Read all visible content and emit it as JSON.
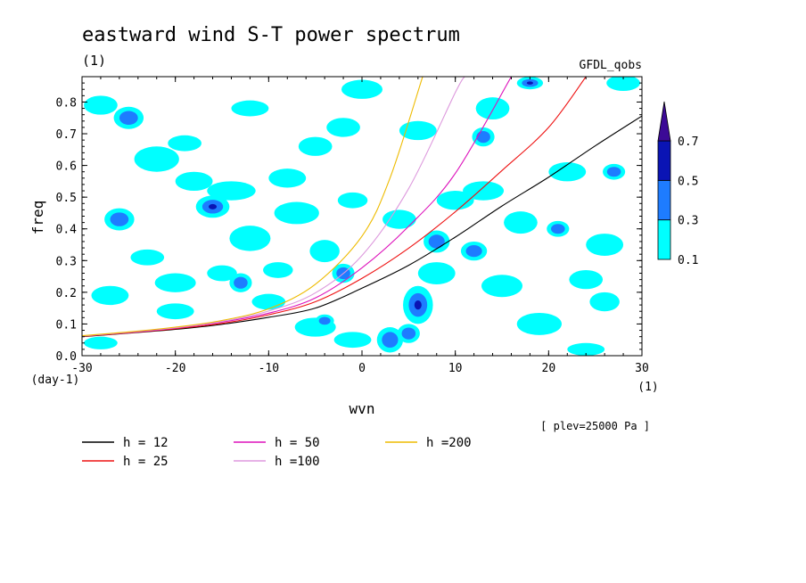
{
  "chart_data": {
    "type": "contour",
    "title": "eastward wind S-T power spectrum",
    "subtitle_left": "(1)",
    "subtitle_right": "GFDL_qobs",
    "xlabel": "wvn",
    "ylabel": "freq",
    "x_unit_label": "(1)",
    "y_unit_label": "(day-1)",
    "annotation": "[ plev=25000 Pa ]",
    "xlim": [
      -30,
      30
    ],
    "ylim": [
      0.0,
      0.88
    ],
    "x_ticks": [
      "-30",
      "-20",
      "-10",
      "0",
      "10",
      "20",
      "30"
    ],
    "y_ticks": [
      "0.0",
      "0.1",
      "0.2",
      "0.3",
      "0.4",
      "0.5",
      "0.6",
      "0.7",
      "0.8"
    ],
    "colorbar": {
      "levels": [
        "0.1",
        "0.3",
        "0.5",
        "0.7"
      ],
      "colors": [
        "#00ffff",
        "#1e7cff",
        "#0a14b4",
        "#3c0a96"
      ]
    },
    "series": [
      {
        "name": "h = 12",
        "color": "#000000",
        "x": [
          -30,
          -25,
          -20,
          -15,
          -10,
          -5,
          0,
          5,
          10,
          15,
          20,
          25,
          30
        ],
        "y": [
          0.06,
          0.071,
          0.083,
          0.099,
          0.121,
          0.15,
          0.213,
          0.285,
          0.374,
          0.472,
          0.563,
          0.662,
          0.756
        ]
      },
      {
        "name": "h = 25",
        "color": "#ee1111",
        "x": [
          -30,
          -25,
          -20,
          -15,
          -10,
          -5,
          0,
          5,
          10,
          15,
          20,
          24
        ],
        "y": [
          0.061,
          0.072,
          0.085,
          0.102,
          0.129,
          0.17,
          0.244,
          0.339,
          0.454,
          0.584,
          0.72,
          0.88
        ]
      },
      {
        "name": "h = 50",
        "color": "#dd11bb",
        "x": [
          -30,
          -25,
          -20,
          -15,
          -10,
          -5,
          0,
          5,
          10,
          16
        ],
        "y": [
          0.062,
          0.073,
          0.087,
          0.106,
          0.134,
          0.182,
          0.277,
          0.408,
          0.575,
          0.88
        ]
      },
      {
        "name": "h =100",
        "color": "#dd99dd",
        "x": [
          -30,
          -25,
          -20,
          -15,
          -10,
          -5,
          0,
          5,
          10,
          11
        ],
        "y": [
          0.062,
          0.074,
          0.088,
          0.108,
          0.141,
          0.198,
          0.316,
          0.527,
          0.83,
          0.88
        ]
      },
      {
        "name": "h =200",
        "color": "#eebb00",
        "x": [
          -30,
          -25,
          -20,
          -15,
          -10,
          -5,
          0,
          3,
          6.5
        ],
        "y": [
          0.063,
          0.075,
          0.09,
          0.111,
          0.148,
          0.225,
          0.377,
          0.56,
          0.88
        ]
      }
    ],
    "contours": [
      {
        "x": -25,
        "y": 0.75,
        "rx": 1.6,
        "ry": 0.035,
        "level": 2
      },
      {
        "x": -22,
        "y": 0.62,
        "rx": 2.4,
        "ry": 0.04,
        "level": 1
      },
      {
        "x": -18,
        "y": 0.55,
        "rx": 2.0,
        "ry": 0.03,
        "level": 1
      },
      {
        "x": -19,
        "y": 0.67,
        "rx": 1.8,
        "ry": 0.025,
        "level": 1
      },
      {
        "x": -16,
        "y": 0.47,
        "rx": 1.8,
        "ry": 0.035,
        "level": 3
      },
      {
        "x": -14,
        "y": 0.52,
        "rx": 2.6,
        "ry": 0.03,
        "level": 1
      },
      {
        "x": -12,
        "y": 0.37,
        "rx": 2.2,
        "ry": 0.04,
        "level": 1
      },
      {
        "x": -8,
        "y": 0.56,
        "rx": 2.0,
        "ry": 0.03,
        "level": 1
      },
      {
        "x": -7,
        "y": 0.45,
        "rx": 2.4,
        "ry": 0.035,
        "level": 1
      },
      {
        "x": -5,
        "y": 0.66,
        "rx": 1.8,
        "ry": 0.03,
        "level": 1
      },
      {
        "x": -4,
        "y": 0.33,
        "rx": 1.6,
        "ry": 0.035,
        "level": 1
      },
      {
        "x": -2,
        "y": 0.26,
        "rx": 1.2,
        "ry": 0.03,
        "level": 2
      },
      {
        "x": -26,
        "y": 0.43,
        "rx": 1.6,
        "ry": 0.035,
        "level": 2
      },
      {
        "x": -27,
        "y": 0.19,
        "rx": 2.0,
        "ry": 0.03,
        "level": 1
      },
      {
        "x": -23,
        "y": 0.31,
        "rx": 1.8,
        "ry": 0.025,
        "level": 1
      },
      {
        "x": -20,
        "y": 0.23,
        "rx": 2.2,
        "ry": 0.03,
        "level": 1
      },
      {
        "x": -15,
        "y": 0.26,
        "rx": 1.6,
        "ry": 0.025,
        "level": 1
      },
      {
        "x": -13,
        "y": 0.23,
        "rx": 1.2,
        "ry": 0.03,
        "level": 2
      },
      {
        "x": -10,
        "y": 0.17,
        "rx": 1.8,
        "ry": 0.025,
        "level": 1
      },
      {
        "x": -5,
        "y": 0.09,
        "rx": 2.2,
        "ry": 0.03,
        "level": 1
      },
      {
        "x": -4,
        "y": 0.11,
        "rx": 1.0,
        "ry": 0.02,
        "level": 2
      },
      {
        "x": -1,
        "y": 0.05,
        "rx": 2.0,
        "ry": 0.025,
        "level": 1
      },
      {
        "x": 3,
        "y": 0.05,
        "rx": 1.4,
        "ry": 0.04,
        "level": 2
      },
      {
        "x": 5,
        "y": 0.07,
        "rx": 1.2,
        "ry": 0.03,
        "level": 2
      },
      {
        "x": 6,
        "y": 0.16,
        "rx": 1.6,
        "ry": 0.06,
        "level": 3
      },
      {
        "x": 8,
        "y": 0.36,
        "rx": 1.4,
        "ry": 0.035,
        "level": 2
      },
      {
        "x": 8,
        "y": 0.26,
        "rx": 2.0,
        "ry": 0.035,
        "level": 1
      },
      {
        "x": 10,
        "y": 0.49,
        "rx": 2.0,
        "ry": 0.03,
        "level": 1
      },
      {
        "x": 12,
        "y": 0.33,
        "rx": 1.4,
        "ry": 0.03,
        "level": 2
      },
      {
        "x": 13,
        "y": 0.52,
        "rx": 2.2,
        "ry": 0.03,
        "level": 1
      },
      {
        "x": 14,
        "y": 0.78,
        "rx": 1.8,
        "ry": 0.035,
        "level": 1
      },
      {
        "x": 15,
        "y": 0.22,
        "rx": 2.2,
        "ry": 0.035,
        "level": 1
      },
      {
        "x": 17,
        "y": 0.42,
        "rx": 1.8,
        "ry": 0.035,
        "level": 1
      },
      {
        "x": 18,
        "y": 0.86,
        "rx": 1.4,
        "ry": 0.02,
        "level": 3
      },
      {
        "x": 19,
        "y": 0.1,
        "rx": 2.4,
        "ry": 0.035,
        "level": 1
      },
      {
        "x": 21,
        "y": 0.4,
        "rx": 1.2,
        "ry": 0.025,
        "level": 2
      },
      {
        "x": 22,
        "y": 0.58,
        "rx": 2.0,
        "ry": 0.03,
        "level": 1
      },
      {
        "x": 24,
        "y": 0.24,
        "rx": 1.8,
        "ry": 0.03,
        "level": 1
      },
      {
        "x": 26,
        "y": 0.35,
        "rx": 2.0,
        "ry": 0.035,
        "level": 1
      },
      {
        "x": 27,
        "y": 0.58,
        "rx": 1.2,
        "ry": 0.025,
        "level": 2
      },
      {
        "x": 28,
        "y": 0.86,
        "rx": 1.8,
        "ry": 0.025,
        "level": 1
      },
      {
        "x": 26,
        "y": 0.17,
        "rx": 1.6,
        "ry": 0.03,
        "level": 1
      },
      {
        "x": -28,
        "y": 0.79,
        "rx": 1.8,
        "ry": 0.03,
        "level": 1
      },
      {
        "x": -12,
        "y": 0.78,
        "rx": 2.0,
        "ry": 0.025,
        "level": 1
      },
      {
        "x": 0,
        "y": 0.84,
        "rx": 2.2,
        "ry": 0.03,
        "level": 1
      },
      {
        "x": 6,
        "y": 0.71,
        "rx": 2.0,
        "ry": 0.03,
        "level": 1
      },
      {
        "x": -1,
        "y": 0.49,
        "rx": 1.6,
        "ry": 0.025,
        "level": 1
      },
      {
        "x": 4,
        "y": 0.43,
        "rx": 1.8,
        "ry": 0.03,
        "level": 1
      },
      {
        "x": -20,
        "y": 0.14,
        "rx": 2.0,
        "ry": 0.025,
        "level": 1
      },
      {
        "x": 24,
        "y": 0.02,
        "rx": 2.0,
        "ry": 0.02,
        "level": 1
      },
      {
        "x": -28,
        "y": 0.04,
        "rx": 1.8,
        "ry": 0.02,
        "level": 1
      },
      {
        "x": 13,
        "y": 0.69,
        "rx": 1.2,
        "ry": 0.03,
        "level": 2
      },
      {
        "x": -2,
        "y": 0.72,
        "rx": 1.8,
        "ry": 0.03,
        "level": 1
      },
      {
        "x": -9,
        "y": 0.27,
        "rx": 1.6,
        "ry": 0.025,
        "level": 1
      }
    ]
  }
}
